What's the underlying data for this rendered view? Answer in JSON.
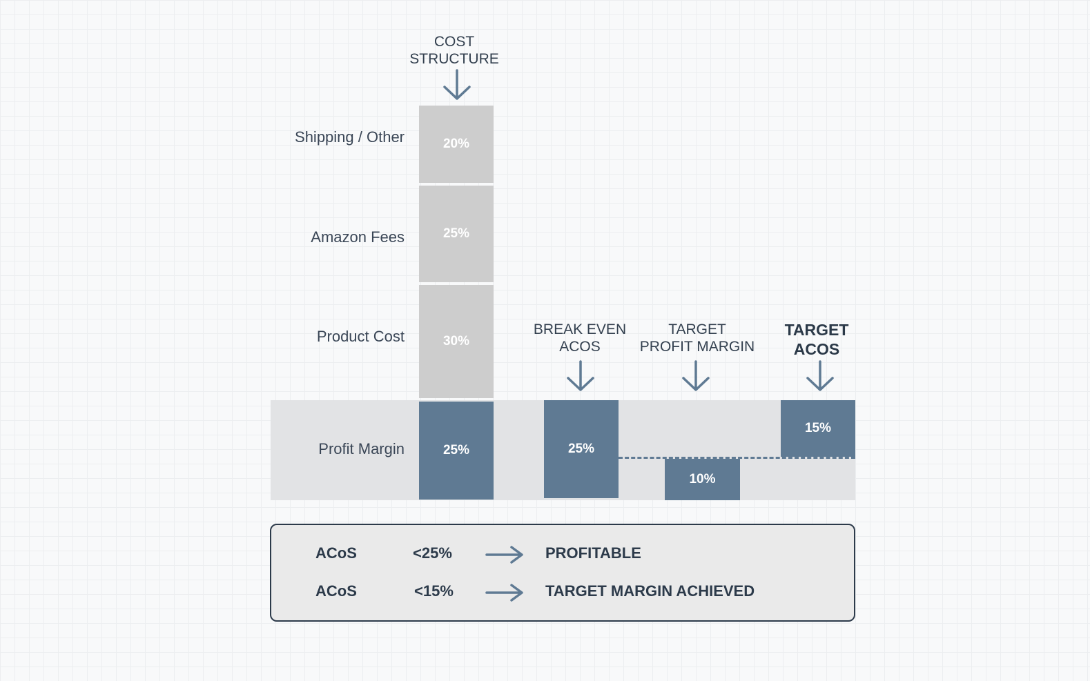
{
  "headers": {
    "cost_structure_line1": "COST",
    "cost_structure_line2": "STRUCTURE",
    "break_even_line1": "BREAK EVEN",
    "break_even_line2": "ACOS",
    "target_margin_line1": "TARGET",
    "target_margin_line2": "PROFIT MARGIN",
    "target_acos_line1": "TARGET",
    "target_acos_line2": "ACOS"
  },
  "row_labels": {
    "shipping": "Shipping / Other",
    "amazon_fees": "Amazon Fees",
    "product_cost": "Product Cost",
    "profit_margin": "Profit Margin"
  },
  "cost_structure": {
    "shipping": "20%",
    "amazon_fees": "25%",
    "product_cost": "30%",
    "profit_margin": "25%"
  },
  "break_even_acos": "25%",
  "target_profit_margin": "10%",
  "target_acos": "15%",
  "legend": [
    {
      "metric": "ACoS",
      "threshold": "<25%",
      "result": "PROFITABLE"
    },
    {
      "metric": "ACoS",
      "threshold": "<15%",
      "result": "TARGET MARGIN ACHIEVED"
    }
  ],
  "colors": {
    "cost_box": "#cdcdcd",
    "highlight_box": "#5f7a93",
    "band": "#e2e3e5",
    "text": "#2c3a4a"
  },
  "icons": [
    "arrow-down-icon",
    "arrow-right-icon"
  ]
}
